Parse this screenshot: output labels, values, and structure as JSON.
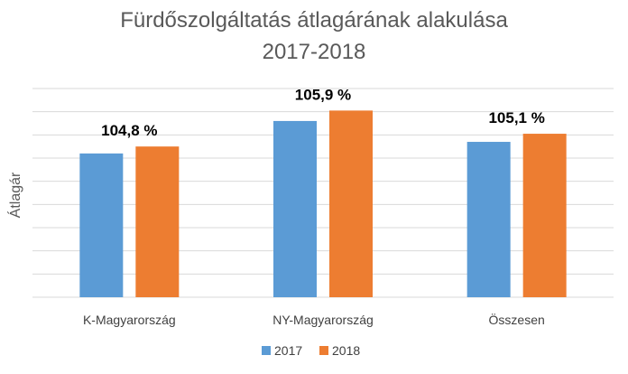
{
  "chart_data": {
    "type": "bar",
    "title": [
      "Fürdőszolgáltatás átlagárának alakulása",
      "2017-2018"
    ],
    "ylabel": "Átlagár",
    "xlabel": "",
    "categories": [
      "K-Magyarország",
      "NY-Magyarország",
      "Összesen"
    ],
    "series": [
      {
        "name": "2017",
        "color": "#5B9BD5",
        "values": [
          6.2,
          7.6,
          6.7
        ]
      },
      {
        "name": "2018",
        "color": "#ED7D31",
        "values": [
          6.5,
          8.05,
          7.05
        ]
      }
    ],
    "data_labels": [
      "104,8 %",
      "105,9 %",
      "105,1 %"
    ],
    "ylim": [
      0,
      9
    ],
    "y_ticks_shown": false,
    "grid": true,
    "legend": "bottom"
  }
}
